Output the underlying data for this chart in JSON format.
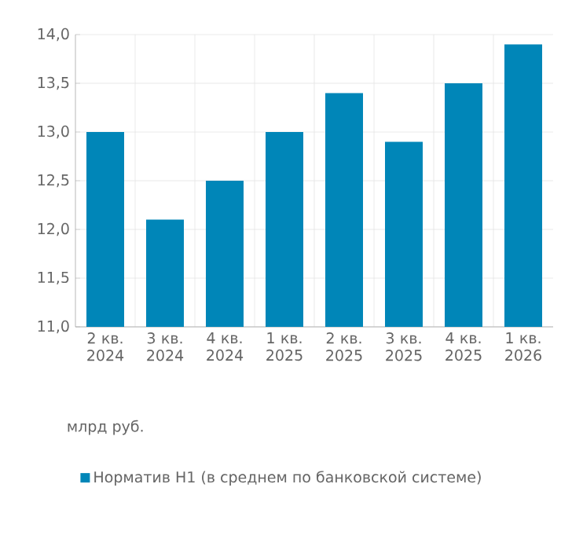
{
  "chart_data": {
    "type": "bar",
    "categories": [
      "2 кв. 2024",
      "3 кв. 2024",
      "4 кв. 2024",
      "1 кв. 2025",
      "2 кв. 2025",
      "3 кв. 2025",
      "4 кв. 2025",
      "1 кв. 2026"
    ],
    "series": [
      {
        "name": "Норматив Н1 (в среднем по банковской системе)",
        "color": "#0086b8",
        "values": [
          13.0,
          12.1,
          12.5,
          13.0,
          13.4,
          12.9,
          13.5,
          13.9
        ]
      }
    ],
    "ylim": [
      11.0,
      14.0
    ],
    "yticks": [
      {
        "value": 11.0,
        "label": "11,0"
      },
      {
        "value": 11.5,
        "label": "11,5"
      },
      {
        "value": 12.0,
        "label": "12,0"
      },
      {
        "value": 12.5,
        "label": "12,5"
      },
      {
        "value": 13.0,
        "label": "13,0"
      },
      {
        "value": 13.5,
        "label": "13,5"
      },
      {
        "value": 14.0,
        "label": "14,0"
      }
    ],
    "grid": true,
    "legend": "bottom",
    "annotations": [
      "млрд руб."
    ]
  }
}
